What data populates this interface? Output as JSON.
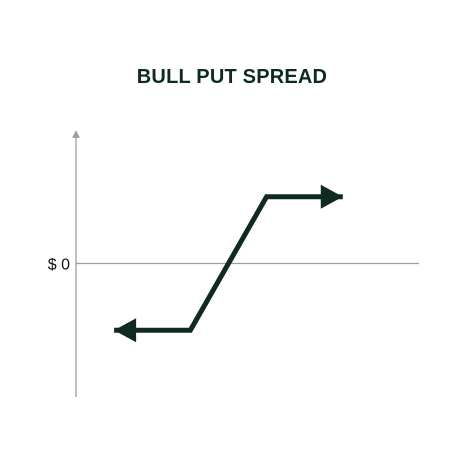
{
  "chart_data": {
    "type": "line",
    "title": "BULL PUT SPREAD",
    "xlabel": "",
    "ylabel": "",
    "y_tick_labels": [
      {
        "value": 0,
        "label": "$ 0"
      }
    ],
    "x": [
      0,
      2,
      4,
      6
    ],
    "series": [
      {
        "values": [
          -1,
          -1,
          1,
          1
        ]
      }
    ],
    "xlim": [
      -1,
      8
    ],
    "ylim": [
      -2,
      2
    ],
    "line_arrows": "both ends",
    "grid": false
  },
  "colors": {
    "line": "#0f2a22",
    "title": "#0f2a22",
    "axis": "#9aa0a0",
    "zero_line": "#9aa0a0",
    "tick_text": "#111111"
  }
}
